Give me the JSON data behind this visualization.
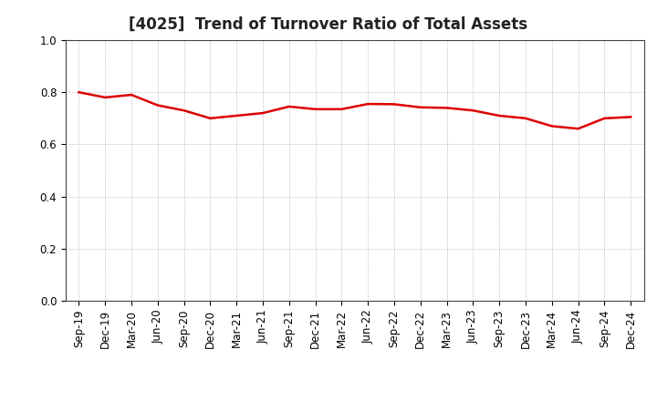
{
  "title": "[4025]  Trend of Turnover Ratio of Total Assets",
  "x_labels": [
    "Sep-19",
    "Dec-19",
    "Mar-20",
    "Jun-20",
    "Sep-20",
    "Dec-20",
    "Mar-21",
    "Jun-21",
    "Sep-21",
    "Dec-21",
    "Mar-22",
    "Jun-22",
    "Sep-22",
    "Dec-22",
    "Mar-23",
    "Jun-23",
    "Sep-23",
    "Dec-23",
    "Mar-24",
    "Jun-24",
    "Sep-24",
    "Dec-24"
  ],
  "y_values": [
    0.8,
    0.78,
    0.79,
    0.75,
    0.73,
    0.7,
    0.71,
    0.72,
    0.745,
    0.735,
    0.735,
    0.755,
    0.754,
    0.742,
    0.74,
    0.73,
    0.71,
    0.7,
    0.67,
    0.66,
    0.7,
    0.705
  ],
  "line_color": "#dd0000",
  "line_width": 1.8,
  "ylim": [
    0.0,
    1.0
  ],
  "yticks": [
    0.0,
    0.2,
    0.4,
    0.6,
    0.8,
    1.0
  ],
  "background_color": "#ffffff",
  "grid_color": "#aaaaaa",
  "title_fontsize": 12,
  "tick_fontsize": 8.5
}
